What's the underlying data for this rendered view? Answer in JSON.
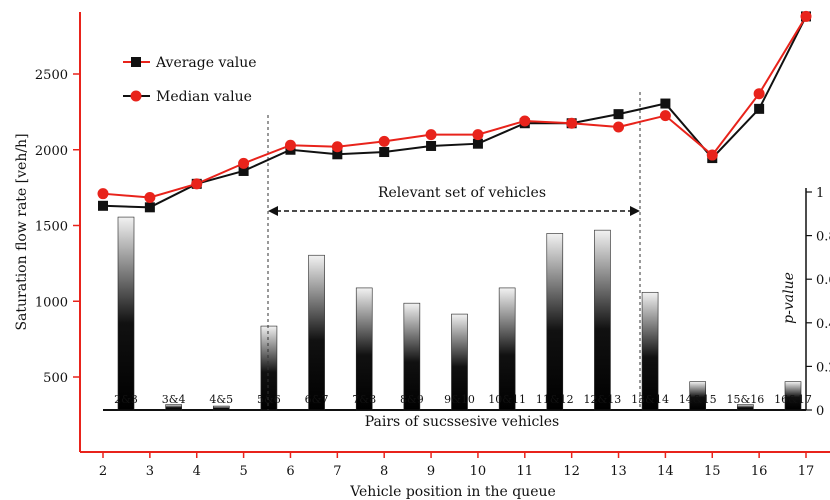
{
  "chart_data": {
    "type": "line+bar",
    "line_x_label": "Vehicle position in the queue",
    "line_y_label": "Saturation flow rate [veh/h]",
    "line_x_ticks": [
      2,
      3,
      4,
      5,
      6,
      7,
      8,
      9,
      10,
      11,
      12,
      13,
      14,
      15,
      16,
      17
    ],
    "line_y_ticks": [
      500,
      1000,
      1500,
      2000,
      2500
    ],
    "line_x": [
      2,
      3,
      4,
      5,
      6,
      7,
      8,
      9,
      10,
      11,
      12,
      13,
      14,
      15,
      16,
      17
    ],
    "series": [
      {
        "name": "Average value",
        "color": "#111111",
        "marker": "square",
        "line_color": "#111111",
        "values": [
          1630,
          1620,
          1775,
          1860,
          2000,
          1970,
          1985,
          2025,
          2040,
          2175,
          2175,
          2235,
          2305,
          1945,
          2270,
          2880
        ]
      },
      {
        "name": "Median value",
        "color": "#e8231b",
        "marker": "circle",
        "line_color": "#e8231b",
        "values": [
          1710,
          1685,
          1775,
          1910,
          2030,
          2020,
          2055,
          2100,
          2100,
          2190,
          2175,
          2150,
          2225,
          1965,
          2370,
          2880
        ]
      }
    ],
    "bar_x_label": "Pairs of sucssesive vehicles",
    "bar_y_label": "p-value",
    "bar_y_ticks": [
      "0",
      "0.2",
      "0.4",
      "0.6",
      "0.8",
      "1"
    ],
    "bar_categories": [
      "2&3",
      "3&4",
      "4&5",
      "5&6",
      "6&7",
      "7&8",
      "8&9",
      "9&10",
      "10&11",
      "11&12",
      "12&13",
      "13&14",
      "14&15",
      "15&16",
      "16&17"
    ],
    "bar_values": [
      0.885,
      0.025,
      0.018,
      0.385,
      0.71,
      0.56,
      0.49,
      0.44,
      0.56,
      0.81,
      0.825,
      0.54,
      0.13,
      0.025,
      0.13
    ],
    "annotation": "Relevant set of vehicles"
  }
}
